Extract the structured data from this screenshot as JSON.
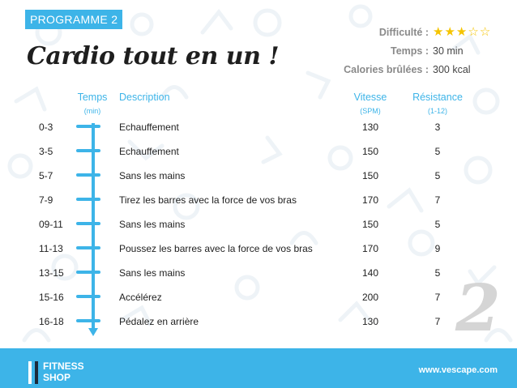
{
  "badge": "PROGRAMME 2",
  "title": "Cardio tout en un !",
  "meta": {
    "difficulty_label": "Difficulté :",
    "difficulty_stars": 3,
    "difficulty_max": 5,
    "time_label": "Temps :",
    "time_value": "30 min",
    "calories_label": "Calories brûlées :",
    "calories_value": "300 kcal"
  },
  "columns": {
    "time": "Temps",
    "time_unit": "(min)",
    "description": "Description",
    "speed": "Vitesse",
    "speed_unit": "(SPM)",
    "resistance": "Résistance",
    "resistance_unit": "(1-12)"
  },
  "rows": [
    {
      "time": "0-3",
      "description": "Echauffement",
      "speed": "130",
      "resistance": "3"
    },
    {
      "time": "3-5",
      "description": "Echauffement",
      "speed": "150",
      "resistance": "5"
    },
    {
      "time": "5-7",
      "description": "Sans les mains",
      "speed": "150",
      "resistance": "5"
    },
    {
      "time": "7-9",
      "description": "Tirez les barres avec la force de vos bras",
      "speed": "170",
      "resistance": "7"
    },
    {
      "time": "09-11",
      "description": "Sans les mains",
      "speed": "150",
      "resistance": "5"
    },
    {
      "time": "11-13",
      "description": "Poussez les barres avec la force de vos bras",
      "speed": "170",
      "resistance": "9"
    },
    {
      "time": "13-15",
      "description": "Sans les mains",
      "speed": "140",
      "resistance": "5"
    },
    {
      "time": "15-16",
      "description": "Accélérez",
      "speed": "200",
      "resistance": "7"
    },
    {
      "time": "16-18",
      "description": "Pédalez en arrière",
      "speed": "130",
      "resistance": "7"
    }
  ],
  "big_number": "2",
  "footer": {
    "logo_line1": "FITNESS",
    "logo_line2": "SHOP",
    "website": "www.vescape.com"
  },
  "colors": {
    "accent": "#3db4e8",
    "star": "#f5c400"
  }
}
